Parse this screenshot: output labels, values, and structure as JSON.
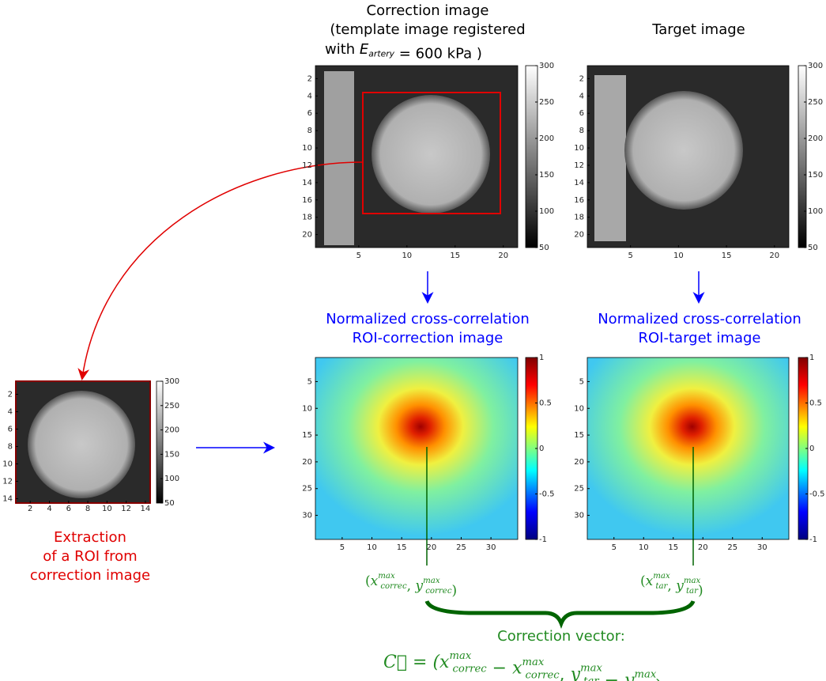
{
  "correction_title": [
    "Correction image",
    "(template image registered"
  ],
  "correction_formula": [
    {
      "text": "with ",
      "pos": "base"
    },
    {
      "text": "E",
      "pos": "base",
      "italic": true
    },
    {
      "text": "artery",
      "pos": "sub",
      "italic": true
    },
    {
      "text": " = 600 kPa",
      "pos": "base"
    },
    {
      "text": " )",
      "pos": "base"
    }
  ],
  "target_title": "Target image",
  "ncc_left": [
    "Normalized cross-correlation",
    "ROI-correction image"
  ],
  "ncc_right": [
    "Normalized cross-correlation",
    "ROI-target image"
  ],
  "roi_caption": [
    "Extraction",
    "of a ROI from",
    "correction image"
  ],
  "max_left": [
    {
      "text": "(",
      "pos": "base"
    },
    {
      "text": "x",
      "pos": "base",
      "italic": true
    },
    {
      "sup": "max",
      "sub": "correc",
      "pos": "supsub"
    },
    {
      "text": ", ",
      "pos": "base"
    },
    {
      "text": "y",
      "pos": "base",
      "italic": true
    },
    {
      "sup": "max",
      "sub": "correc",
      "pos": "supsub"
    },
    {
      "text": ")",
      "pos": "base"
    }
  ],
  "max_right": [
    {
      "text": "(",
      "pos": "base"
    },
    {
      "text": "x",
      "pos": "base",
      "italic": true
    },
    {
      "sup": "max",
      "sub": "tar",
      "pos": "supsub"
    },
    {
      "text": ", ",
      "pos": "base"
    },
    {
      "text": "y",
      "pos": "base",
      "italic": true
    },
    {
      "sup": "max",
      "sub": "tar",
      "pos": "supsub"
    },
    {
      "text": ")",
      "pos": "base"
    }
  ],
  "vector_label": "Correction vector:",
  "vector_formula": [
    {
      "text": "C⃗ = (",
      "pos": "base",
      "italic": true
    },
    {
      "text": "x",
      "pos": "base",
      "italic": true
    },
    {
      "sup": "max",
      "sub": "correc",
      "pos": "supsub"
    },
    {
      "text": " − ",
      "pos": "base"
    },
    {
      "text": "x",
      "pos": "base",
      "italic": true
    },
    {
      "sup": "max",
      "sub": "correc",
      "pos": "supsub"
    },
    {
      "text": ", ",
      "pos": "base"
    },
    {
      "text": "y",
      "pos": "base",
      "italic": true
    },
    {
      "sup": "max",
      "sub": "tar",
      "pos": "supsub"
    },
    {
      "text": " − ",
      "pos": "base"
    },
    {
      "text": "y",
      "pos": "base",
      "italic": true
    },
    {
      "sup": "max",
      "sub": "reg",
      "pos": "supsub"
    },
    {
      "text": ")",
      "pos": "base"
    }
  ],
  "axes": [
    {
      "xlim": [
        0.5,
        21.5
      ],
      "ylim": [
        0.5,
        21.5
      ],
      "xticks": [
        5,
        10,
        15,
        20
      ],
      "yticks": [
        2,
        4,
        6,
        8,
        10,
        12,
        14,
        16,
        18,
        20
      ],
      "clim": [
        50,
        300
      ],
      "cticks": [
        50,
        100,
        150,
        200,
        250,
        300
      ]
    },
    {
      "xlim": [
        0.5,
        21.5
      ],
      "ylim": [
        0.5,
        21.5
      ],
      "xticks": [
        5,
        10,
        15,
        20
      ],
      "yticks": [
        2,
        4,
        6,
        8,
        10,
        12,
        14,
        16,
        18,
        20
      ],
      "clim": [
        50,
        300
      ],
      "cticks": [
        50,
        100,
        150,
        200,
        250,
        300
      ]
    },
    {
      "xlim": [
        0.5,
        34.5
      ],
      "ylim": [
        0.5,
        34.5
      ],
      "xticks": [
        5,
        10,
        15,
        20,
        25,
        30
      ],
      "yticks": [
        5,
        10,
        15,
        20,
        25,
        30
      ],
      "clim": [
        -1,
        1
      ],
      "cticks": [
        -1,
        -0.5,
        0,
        0.5,
        1
      ]
    },
    {
      "xlim": [
        0.5,
        34.5
      ],
      "ylim": [
        0.5,
        34.5
      ],
      "xticks": [
        5,
        10,
        15,
        20,
        25,
        30
      ],
      "yticks": [
        5,
        10,
        15,
        20,
        25,
        30
      ],
      "clim": [
        -1,
        1
      ],
      "cticks": [
        -1,
        -0.5,
        0,
        0.5,
        1
      ]
    },
    {
      "xlim": [
        0.5,
        14.5
      ],
      "ylim": [
        0.5,
        14.5
      ],
      "xticks": [
        2,
        4,
        6,
        8,
        10,
        12,
        14
      ],
      "yticks": [
        2,
        4,
        6,
        8,
        10,
        12,
        14
      ],
      "clim": [
        50,
        300
      ],
      "cticks": [
        50,
        100,
        150,
        200,
        250,
        300
      ]
    }
  ]
}
